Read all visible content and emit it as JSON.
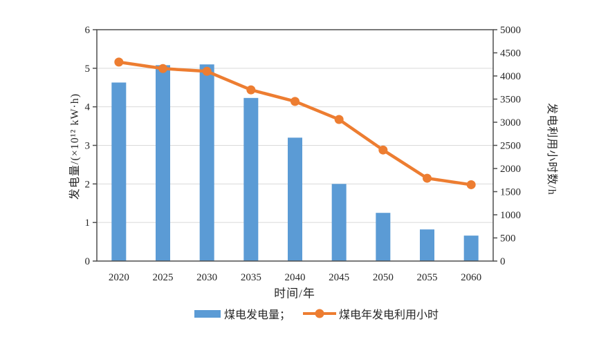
{
  "chart_data": {
    "type": "bar+line",
    "title": "",
    "categories": [
      "2020",
      "2025",
      "2030",
      "2035",
      "2040",
      "2045",
      "2050",
      "2055",
      "2060"
    ],
    "series": [
      {
        "name": "煤电发电量",
        "type": "bar",
        "axis": "left",
        "color": "#5B9BD5",
        "values": [
          4.63,
          5.08,
          5.1,
          4.23,
          3.2,
          2.0,
          1.25,
          0.82,
          0.66
        ]
      },
      {
        "name": "煤电年发电利用小时",
        "type": "line",
        "axis": "right",
        "color": "#ED7D31",
        "values": [
          4300,
          4160,
          4100,
          3700,
          3450,
          3060,
          2400,
          1790,
          1650
        ]
      }
    ],
    "left_axis": {
      "label": "发电量/(×10¹² kW·h)",
      "min": 0,
      "max": 6,
      "step": 1
    },
    "right_axis": {
      "label": "发电利用小时数/h",
      "min": 0,
      "max": 5000,
      "step": 500
    },
    "xlabel": "时间/年",
    "grid": true,
    "legend": [
      {
        "label": "煤电发电量；",
        "swatch": "bar",
        "color": "#5B9BD5"
      },
      {
        "label": "煤电年发电利用小时",
        "swatch": "line",
        "color": "#ED7D31"
      }
    ],
    "colors": {
      "frame": "#4d4d4d",
      "grid": "#d9d9d9",
      "text": "#262626",
      "background": "#ffffff"
    }
  }
}
